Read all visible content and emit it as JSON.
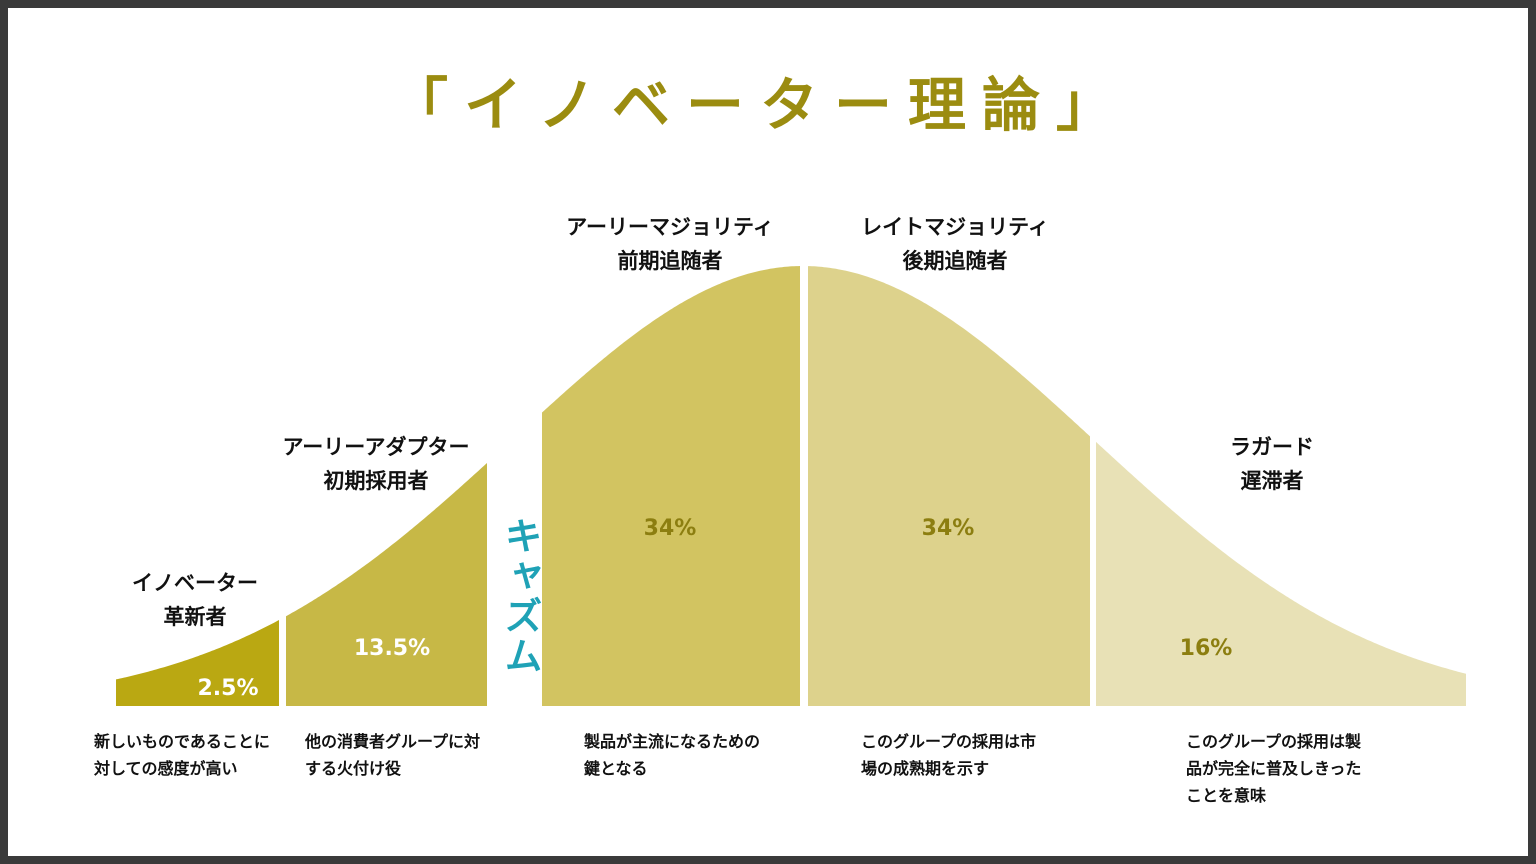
{
  "title": "「イノベーター理論」",
  "chasm_label": "キャズム",
  "segments": [
    {
      "name": "イノベーター",
      "sub": "革新者",
      "percent": "2.5%",
      "desc": "新しいものであることに対しての感度が高い",
      "color": "#baa812",
      "pct_color": "#ffffff"
    },
    {
      "name": "アーリーアダプター",
      "sub": "初期採用者",
      "percent": "13.5%",
      "desc": "他の消費者グループに対する火付け役",
      "color": "#c7b846",
      "pct_color": "#ffffff"
    },
    {
      "name": "アーリーマジョリティ",
      "sub": "前期追随者",
      "percent": "34%",
      "desc": "製品が主流になるための鍵となる",
      "color": "#d2c461",
      "pct_color": "#8c7e10"
    },
    {
      "name": "レイトマジョリティ",
      "sub": "後期追随者",
      "percent": "34%",
      "desc": "このグループの採用は市場の成熟期を示す",
      "color": "#ddd28c",
      "pct_color": "#8c7e10"
    },
    {
      "name": "ラガード",
      "sub": "遅滞者",
      "percent": "16%",
      "desc": "このグループの採用は製品が完全に普及しきったことを意味",
      "color": "#e8e1b6",
      "pct_color": "#8c7e10"
    }
  ]
}
